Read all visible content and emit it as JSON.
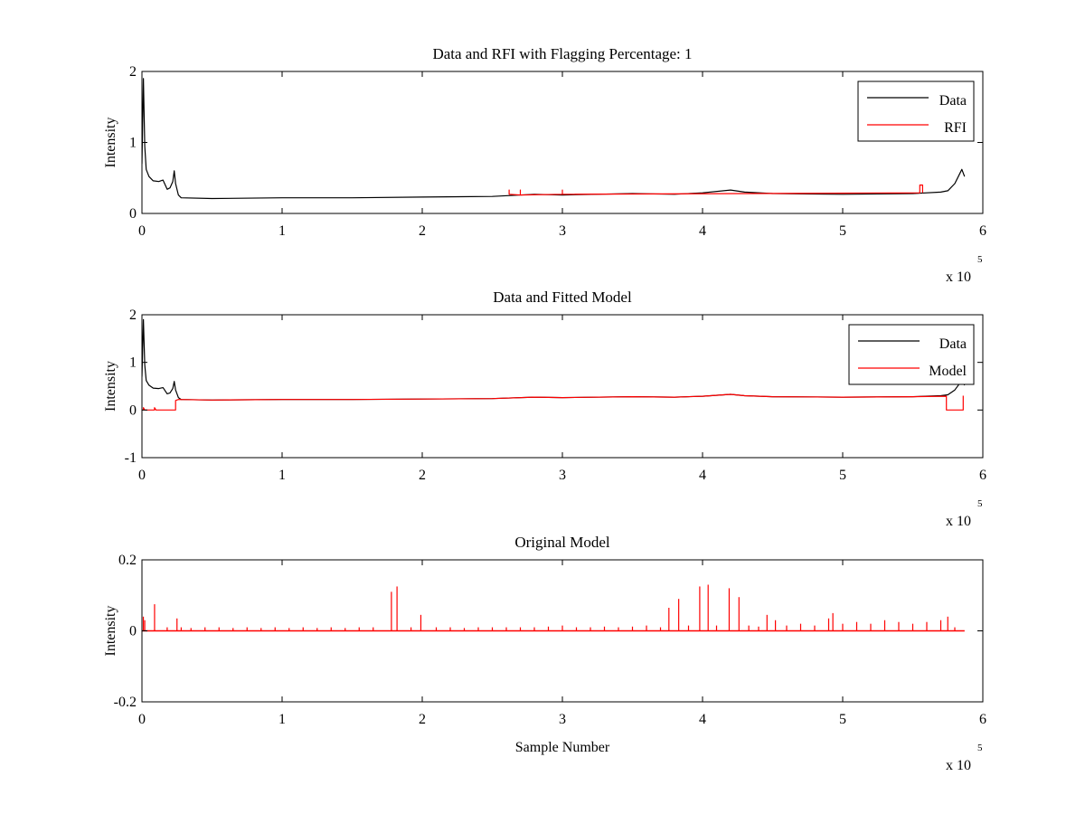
{
  "chart_data": [
    {
      "type": "line",
      "title": "Data and RFI with Flagging Percentage: 1",
      "xlabel": "",
      "ylabel": "Intensity",
      "xlim": [
        0,
        600000
      ],
      "ylim": [
        0,
        2
      ],
      "x_ticks": [
        0,
        100000,
        200000,
        300000,
        400000,
        500000,
        600000
      ],
      "x_tick_labels": [
        "0",
        "1",
        "2",
        "3",
        "4",
        "5",
        "6"
      ],
      "y_ticks": [
        0,
        1,
        2
      ],
      "y_tick_labels": [
        "0",
        "1",
        "2"
      ],
      "x_exponent": {
        "base": "x 10",
        "power": "5"
      },
      "grid": false,
      "legend_position": "top-right",
      "series": [
        {
          "name": "Data",
          "color": "#000000",
          "points": [
            [
              0,
              0.7
            ],
            [
              1000,
              1.9
            ],
            [
              2000,
              0.95
            ],
            [
              3000,
              0.62
            ],
            [
              5000,
              0.52
            ],
            [
              8000,
              0.46
            ],
            [
              12000,
              0.45
            ],
            [
              15000,
              0.47
            ],
            [
              18000,
              0.34
            ],
            [
              20000,
              0.36
            ],
            [
              22000,
              0.45
            ],
            [
              23000,
              0.6
            ],
            [
              24000,
              0.42
            ],
            [
              26000,
              0.26
            ],
            [
              28000,
              0.22
            ],
            [
              50000,
              0.21
            ],
            [
              100000,
              0.22
            ],
            [
              150000,
              0.22
            ],
            [
              200000,
              0.23
            ],
            [
              250000,
              0.24
            ],
            [
              280000,
              0.27
            ],
            [
              300000,
              0.26
            ],
            [
              350000,
              0.28
            ],
            [
              380000,
              0.27
            ],
            [
              400000,
              0.29
            ],
            [
              420000,
              0.33
            ],
            [
              430000,
              0.3
            ],
            [
              450000,
              0.28
            ],
            [
              500000,
              0.27
            ],
            [
              550000,
              0.28
            ],
            [
              570000,
              0.3
            ],
            [
              575000,
              0.32
            ],
            [
              580000,
              0.42
            ],
            [
              585000,
              0.62
            ],
            [
              587000,
              0.52
            ]
          ]
        },
        {
          "name": "RFI",
          "color": "#ff0000",
          "points": [
            [
              262000,
              0.27
            ],
            [
              262000,
              0.33
            ],
            [
              262000,
              0.27
            ],
            [
              270000,
              0.26
            ],
            [
              270000,
              0.33
            ],
            [
              270000,
              0.26
            ],
            [
              300000,
              0.27
            ],
            [
              300000,
              0.33
            ],
            [
              300000,
              0.27
            ],
            [
              555000,
              0.29
            ],
            [
              555000,
              0.4
            ],
            [
              557000,
              0.4
            ],
            [
              557000,
              0.29
            ]
          ]
        }
      ]
    },
    {
      "type": "line",
      "title": "Data and Fitted Model",
      "xlabel": "",
      "ylabel": "Intensity",
      "xlim": [
        0,
        600000
      ],
      "ylim": [
        -1,
        2
      ],
      "x_ticks": [
        0,
        100000,
        200000,
        300000,
        400000,
        500000,
        600000
      ],
      "x_tick_labels": [
        "0",
        "1",
        "2",
        "3",
        "4",
        "5",
        "6"
      ],
      "y_ticks": [
        -1,
        0,
        1,
        2
      ],
      "y_tick_labels": [
        "-1",
        "0",
        "1",
        "2"
      ],
      "x_exponent": {
        "base": "x 10",
        "power": "5"
      },
      "grid": false,
      "legend_position": "top-right",
      "series": [
        {
          "name": "Data",
          "color": "#000000",
          "points": [
            [
              0,
              0.7
            ],
            [
              1000,
              1.9
            ],
            [
              2000,
              0.95
            ],
            [
              3000,
              0.62
            ],
            [
              5000,
              0.52
            ],
            [
              8000,
              0.46
            ],
            [
              12000,
              0.45
            ],
            [
              15000,
              0.47
            ],
            [
              18000,
              0.34
            ],
            [
              20000,
              0.36
            ],
            [
              22000,
              0.45
            ],
            [
              23000,
              0.6
            ],
            [
              24000,
              0.42
            ],
            [
              26000,
              0.26
            ],
            [
              28000,
              0.22
            ],
            [
              50000,
              0.21
            ],
            [
              100000,
              0.22
            ],
            [
              150000,
              0.22
            ],
            [
              200000,
              0.23
            ],
            [
              250000,
              0.24
            ],
            [
              280000,
              0.27
            ],
            [
              300000,
              0.26
            ],
            [
              350000,
              0.28
            ],
            [
              380000,
              0.27
            ],
            [
              400000,
              0.29
            ],
            [
              420000,
              0.33
            ],
            [
              430000,
              0.3
            ],
            [
              450000,
              0.28
            ],
            [
              500000,
              0.27
            ],
            [
              550000,
              0.28
            ],
            [
              570000,
              0.3
            ],
            [
              575000,
              0.32
            ],
            [
              580000,
              0.42
            ],
            [
              585000,
              0.62
            ],
            [
              587000,
              0.52
            ]
          ]
        },
        {
          "name": "Model",
          "color": "#ff0000",
          "points": [
            [
              0,
              0.0
            ],
            [
              1000,
              0.0
            ],
            [
              1000,
              0.05
            ],
            [
              2000,
              0.0
            ],
            [
              9000,
              0.0
            ],
            [
              9000,
              0.05
            ],
            [
              10000,
              0.0
            ],
            [
              24000,
              0.0
            ],
            [
              24000,
              0.2
            ],
            [
              26000,
              0.22
            ],
            [
              50000,
              0.21
            ],
            [
              100000,
              0.22
            ],
            [
              150000,
              0.22
            ],
            [
              200000,
              0.23
            ],
            [
              250000,
              0.24
            ],
            [
              280000,
              0.27
            ],
            [
              300000,
              0.26
            ],
            [
              350000,
              0.28
            ],
            [
              380000,
              0.27
            ],
            [
              400000,
              0.29
            ],
            [
              420000,
              0.33
            ],
            [
              430000,
              0.3
            ],
            [
              450000,
              0.28
            ],
            [
              500000,
              0.27
            ],
            [
              550000,
              0.28
            ],
            [
              574000,
              0.29
            ],
            [
              574000,
              0.0
            ],
            [
              586000,
              0.0
            ],
            [
              586000,
              0.3
            ]
          ]
        }
      ]
    },
    {
      "type": "line",
      "title": "Original Model",
      "xlabel": "Sample Number",
      "ylabel": "Intensity",
      "xlim": [
        0,
        600000
      ],
      "ylim": [
        -0.2,
        0.2
      ],
      "x_ticks": [
        0,
        100000,
        200000,
        300000,
        400000,
        500000,
        600000
      ],
      "x_tick_labels": [
        "0",
        "1",
        "2",
        "3",
        "4",
        "5",
        "6"
      ],
      "y_ticks": [
        -0.2,
        0,
        0.2
      ],
      "y_tick_labels": [
        "-0.2",
        "0",
        "0.2"
      ],
      "x_exponent": {
        "base": "x 10",
        "power": "5"
      },
      "grid": false,
      "series": [
        {
          "color": "#ff0000",
          "baseline": 0,
          "x_end": 587000,
          "spikes": [
            [
              1000,
              0.04
            ],
            [
              2000,
              0.03
            ],
            [
              9000,
              0.075
            ],
            [
              18000,
              0.01
            ],
            [
              25000,
              0.035
            ],
            [
              28000,
              0.01
            ],
            [
              35000,
              0.008
            ],
            [
              45000,
              0.01
            ],
            [
              55000,
              0.01
            ],
            [
              65000,
              0.008
            ],
            [
              75000,
              0.01
            ],
            [
              85000,
              0.008
            ],
            [
              95000,
              0.01
            ],
            [
              105000,
              0.008
            ],
            [
              115000,
              0.01
            ],
            [
              125000,
              0.008
            ],
            [
              135000,
              0.01
            ],
            [
              145000,
              0.008
            ],
            [
              155000,
              0.01
            ],
            [
              165000,
              0.01
            ],
            [
              178000,
              0.11
            ],
            [
              182000,
              0.125
            ],
            [
              192000,
              0.01
            ],
            [
              199000,
              0.045
            ],
            [
              210000,
              0.01
            ],
            [
              220000,
              0.01
            ],
            [
              230000,
              0.008
            ],
            [
              240000,
              0.01
            ],
            [
              250000,
              0.01
            ],
            [
              260000,
              0.01
            ],
            [
              270000,
              0.01
            ],
            [
              280000,
              0.01
            ],
            [
              290000,
              0.012
            ],
            [
              300000,
              0.015
            ],
            [
              310000,
              0.01
            ],
            [
              320000,
              0.01
            ],
            [
              330000,
              0.012
            ],
            [
              340000,
              0.01
            ],
            [
              350000,
              0.012
            ],
            [
              360000,
              0.015
            ],
            [
              370000,
              0.01
            ],
            [
              376000,
              0.065
            ],
            [
              383000,
              0.09
            ],
            [
              390000,
              0.015
            ],
            [
              398000,
              0.125
            ],
            [
              404000,
              0.13
            ],
            [
              410000,
              0.015
            ],
            [
              419000,
              0.12
            ],
            [
              426000,
              0.095
            ],
            [
              433000,
              0.015
            ],
            [
              440000,
              0.012
            ],
            [
              446000,
              0.045
            ],
            [
              452000,
              0.03
            ],
            [
              460000,
              0.015
            ],
            [
              470000,
              0.02
            ],
            [
              480000,
              0.015
            ],
            [
              490000,
              0.035
            ],
            [
              493000,
              0.05
            ],
            [
              500000,
              0.02
            ],
            [
              510000,
              0.025
            ],
            [
              520000,
              0.02
            ],
            [
              530000,
              0.03
            ],
            [
              540000,
              0.025
            ],
            [
              550000,
              0.02
            ],
            [
              560000,
              0.025
            ],
            [
              570000,
              0.03
            ],
            [
              575000,
              0.04
            ],
            [
              580000,
              0.01
            ]
          ]
        }
      ]
    }
  ]
}
